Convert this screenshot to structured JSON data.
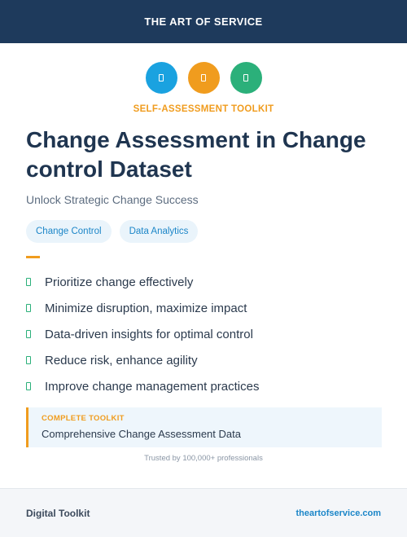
{
  "header": {
    "brand": "THE ART OF SERVICE"
  },
  "icons": [
    {
      "name": "blue-doc-icon",
      "color": "#1aa2e0"
    },
    {
      "name": "orange-doc-icon",
      "color": "#f09c1e"
    },
    {
      "name": "green-doc-icon",
      "color": "#2bb07a"
    }
  ],
  "hero": {
    "kicker": "SELF-ASSESSMENT TOOLKIT",
    "title": "Change Assessment in Change control Dataset",
    "subtitle": "Unlock Strategic Change Success"
  },
  "tags": [
    "Change Control",
    "Data Analytics"
  ],
  "features": [
    "Prioritize change effectively",
    "Minimize disruption, maximize impact",
    "Data-driven insights for optimal control",
    "Reduce risk, enhance agility",
    "Improve change management practices"
  ],
  "callout": {
    "label": "COMPLETE TOOLKIT",
    "description": "Comprehensive Change Assessment Data"
  },
  "trusted": "Trusted by 100,000+ professionals",
  "footer": {
    "left": "Digital Toolkit",
    "right": "theartofservice.com"
  },
  "colors": {
    "navy": "#1e3a5c",
    "orange": "#f09c1e",
    "blue": "#1aa2e0",
    "green": "#2bb07a"
  }
}
